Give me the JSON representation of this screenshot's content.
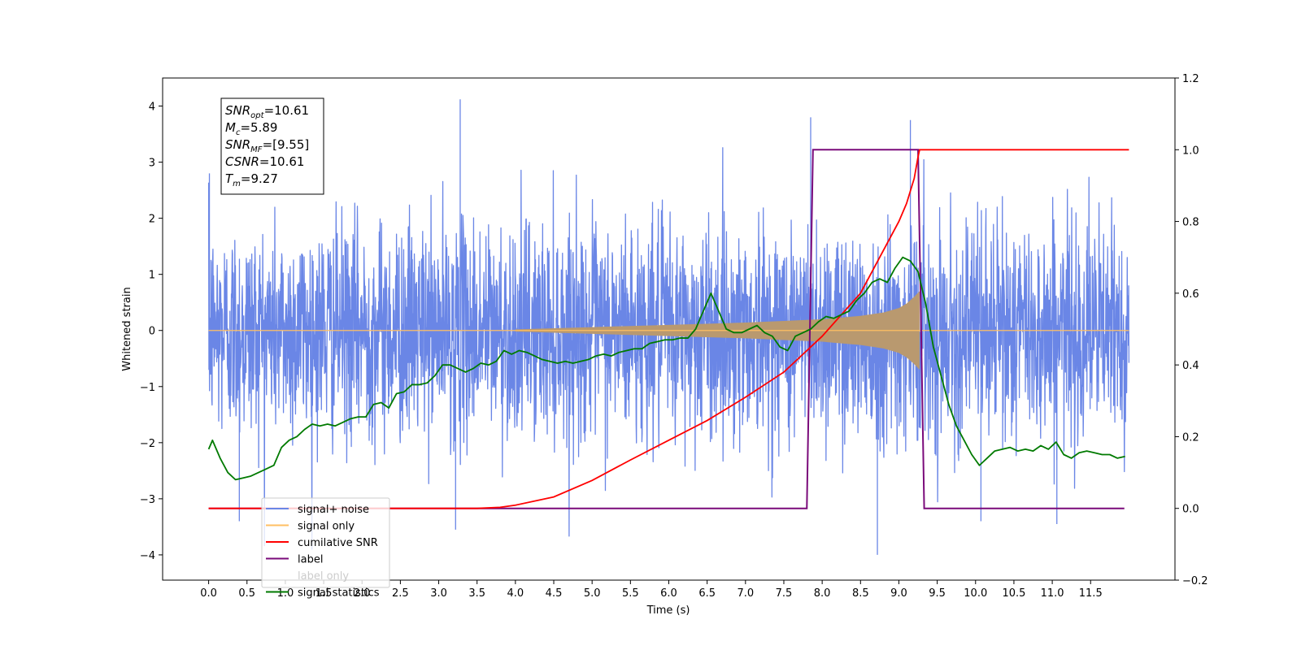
{
  "chart_data": {
    "type": "line",
    "xlabel": "Time (s)",
    "ylabel": "Whitened strain",
    "xlim": [
      -0.6,
      12.6
    ],
    "ylim": [
      -4.45,
      4.5
    ],
    "y2lim": [
      -0.2,
      1.2
    ],
    "x_ticks": [
      0.0,
      0.5,
      1.0,
      1.5,
      2.0,
      2.5,
      3.0,
      3.5,
      4.0,
      4.5,
      5.0,
      5.5,
      6.0,
      6.5,
      7.0,
      7.5,
      8.0,
      8.5,
      9.0,
      9.5,
      10.0,
      10.5,
      11.0,
      11.5
    ],
    "x_tick_labels": [
      "0.0",
      "0.5",
      "1.0",
      "1.5",
      "2.0",
      "2.5",
      "3.0",
      "3.5",
      "4.0",
      "4.5",
      "5.0",
      "5.5",
      "6.0",
      "6.5",
      "7.0",
      "7.5",
      "8.0",
      "8.5",
      "9.0",
      "9.5",
      "10.0",
      "10.5",
      "11.0",
      "11.5"
    ],
    "y_ticks": [
      -4,
      -3,
      -2,
      -1,
      0,
      1,
      2,
      3,
      4
    ],
    "y_tick_labels": [
      "−4",
      "−3",
      "−2",
      "−1",
      "0",
      "1",
      "2",
      "3",
      "4"
    ],
    "y2_ticks": [
      -0.2,
      0.0,
      0.2,
      0.4,
      0.6,
      0.8,
      1.0,
      1.2
    ],
    "y2_tick_labels": [
      "−0.2",
      "0.0",
      "0.2",
      "0.4",
      "0.6",
      "0.8",
      "1.0",
      "1.2"
    ],
    "legend_position": "lower-left",
    "grid": false,
    "annotation_box": {
      "lines": [
        {
          "main": "SNR",
          "sub": "opt",
          "value": "=10.61"
        },
        {
          "main": "M",
          "sub": "c",
          "value": "=5.89"
        },
        {
          "main": "SNR",
          "sub": "MF",
          "value": "=[9.55]"
        },
        {
          "main": "CSNR",
          "sub": "",
          "value": "=10.61"
        },
        {
          "main": "T",
          "sub": "m",
          "value": "=9.27"
        }
      ]
    },
    "series": [
      {
        "name": "signal+ noise",
        "color": "#6a86e6",
        "axis": "left",
        "style": "noise",
        "x_range": [
          0.0,
          12.0
        ],
        "envelope_upper_approx": 2.7,
        "envelope_lower_approx": -2.5,
        "peak_max": 4.12,
        "peak_min": -4.0
      },
      {
        "name": "signal only",
        "color": "#ffbf63",
        "axis": "left",
        "style": "chirp",
        "x_range": [
          0.0,
          12.0
        ],
        "chirp_end": 9.27,
        "amplitude_points": {
          "x": [
            4.0,
            5.0,
            6.0,
            7.0,
            7.5,
            8.0,
            8.5,
            8.8,
            9.0,
            9.1,
            9.2,
            9.27
          ],
          "y": [
            0.02,
            0.06,
            0.1,
            0.14,
            0.17,
            0.2,
            0.26,
            0.32,
            0.4,
            0.48,
            0.6,
            0.7
          ]
        },
        "overlap_color": "#b9996f"
      },
      {
        "name": "cumilative SNR",
        "color": "#ff0000",
        "axis": "right",
        "x": [
          0.0,
          3.5,
          3.8,
          4.0,
          4.5,
          5.0,
          5.5,
          6.0,
          6.5,
          7.0,
          7.5,
          8.0,
          8.5,
          9.0,
          9.1,
          9.2,
          9.25,
          9.27,
          12.0
        ],
        "y": [
          0.0,
          0.0,
          0.003,
          0.009,
          0.032,
          0.078,
          0.135,
          0.19,
          0.245,
          0.31,
          0.38,
          0.48,
          0.6,
          0.8,
          0.85,
          0.92,
          0.98,
          1.0,
          1.0
        ]
      },
      {
        "name": "label",
        "color": "#7a0a7a",
        "axis": "right",
        "x": [
          0.0,
          7.8,
          7.88,
          9.25,
          9.33,
          11.94
        ],
        "y": [
          0.0,
          0.0,
          1.0,
          1.0,
          0.0,
          0.0
        ]
      },
      {
        "name": "label only",
        "color": "#aaaaaa",
        "axis": "right",
        "hidden": true
      },
      {
        "name": "signal statistics",
        "color": "#007a00",
        "axis": "right",
        "x": [
          0.0,
          0.05,
          0.15,
          0.25,
          0.35,
          0.45,
          0.55,
          0.65,
          0.75,
          0.85,
          0.95,
          1.05,
          1.15,
          1.25,
          1.35,
          1.45,
          1.55,
          1.65,
          1.75,
          1.85,
          1.95,
          2.05,
          2.15,
          2.25,
          2.35,
          2.45,
          2.55,
          2.65,
          2.75,
          2.85,
          2.95,
          3.05,
          3.15,
          3.25,
          3.35,
          3.45,
          3.55,
          3.65,
          3.75,
          3.85,
          3.95,
          4.05,
          4.15,
          4.25,
          4.35,
          4.45,
          4.55,
          4.65,
          4.75,
          4.85,
          4.95,
          5.05,
          5.15,
          5.25,
          5.35,
          5.45,
          5.55,
          5.65,
          5.75,
          5.85,
          5.95,
          6.05,
          6.15,
          6.25,
          6.35,
          6.45,
          6.55,
          6.65,
          6.75,
          6.85,
          6.95,
          7.05,
          7.15,
          7.25,
          7.35,
          7.45,
          7.55,
          7.65,
          7.75,
          7.85,
          7.95,
          8.05,
          8.15,
          8.25,
          8.35,
          8.45,
          8.55,
          8.65,
          8.75,
          8.85,
          8.95,
          9.05,
          9.15,
          9.25,
          9.35,
          9.45,
          9.55,
          9.65,
          9.75,
          9.85,
          9.95,
          10.05,
          10.15,
          10.25,
          10.35,
          10.45,
          10.55,
          10.65,
          10.75,
          10.85,
          10.95,
          11.05,
          11.15,
          11.25,
          11.35,
          11.45,
          11.55,
          11.65,
          11.75,
          11.85,
          11.95
        ],
        "y": [
          0.165,
          0.19,
          0.14,
          0.1,
          0.08,
          0.085,
          0.09,
          0.1,
          0.11,
          0.12,
          0.17,
          0.19,
          0.2,
          0.22,
          0.235,
          0.23,
          0.235,
          0.23,
          0.24,
          0.25,
          0.255,
          0.255,
          0.29,
          0.295,
          0.28,
          0.32,
          0.325,
          0.345,
          0.345,
          0.35,
          0.37,
          0.4,
          0.4,
          0.39,
          0.38,
          0.39,
          0.405,
          0.4,
          0.41,
          0.44,
          0.43,
          0.44,
          0.435,
          0.425,
          0.415,
          0.41,
          0.405,
          0.41,
          0.405,
          0.41,
          0.415,
          0.425,
          0.43,
          0.425,
          0.435,
          0.44,
          0.445,
          0.445,
          0.46,
          0.465,
          0.47,
          0.47,
          0.475,
          0.475,
          0.5,
          0.55,
          0.6,
          0.55,
          0.5,
          0.49,
          0.49,
          0.5,
          0.51,
          0.49,
          0.48,
          0.45,
          0.44,
          0.48,
          0.49,
          0.5,
          0.52,
          0.535,
          0.53,
          0.54,
          0.55,
          0.58,
          0.6,
          0.63,
          0.64,
          0.63,
          0.67,
          0.7,
          0.69,
          0.66,
          0.57,
          0.45,
          0.37,
          0.29,
          0.23,
          0.19,
          0.15,
          0.12,
          0.14,
          0.16,
          0.165,
          0.17,
          0.16,
          0.165,
          0.16,
          0.175,
          0.165,
          0.185,
          0.15,
          0.14,
          0.155,
          0.16,
          0.155,
          0.15,
          0.15,
          0.14,
          0.145
        ]
      }
    ]
  }
}
